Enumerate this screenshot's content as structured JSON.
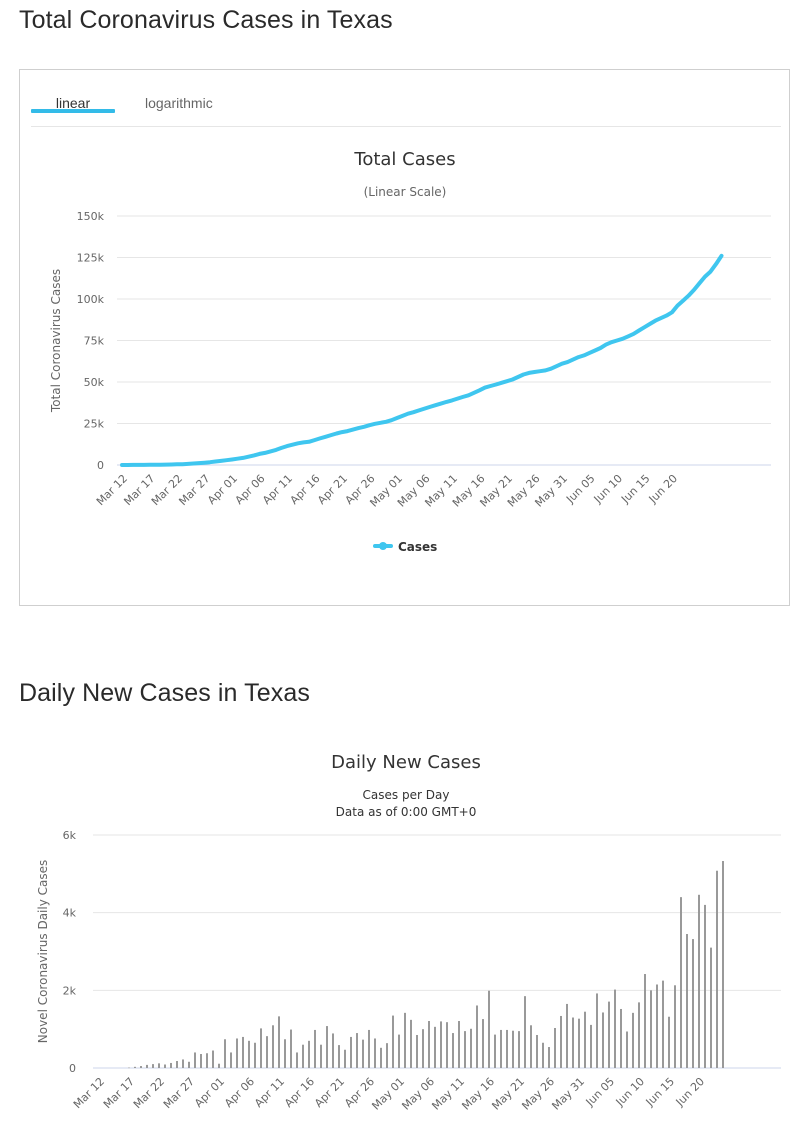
{
  "page": {
    "section1_title": "Total Coronavirus Cases in Texas",
    "section2_title": "Daily New Cases in Texas"
  },
  "tabs": [
    {
      "label": "linear",
      "active": true
    },
    {
      "label": "logarithmic",
      "active": false
    }
  ],
  "colors": {
    "accent": "#33bbe8",
    "line": "#3fc6ef",
    "bar": "#999999",
    "grid": "#e6e6e6"
  },
  "chart_data": [
    {
      "type": "line",
      "title": "Total Cases",
      "subtitle": "(Linear Scale)",
      "ylabel": "Total Coronavirus Cases",
      "ylim": [
        0,
        150000
      ],
      "yticks": [
        0,
        25000,
        50000,
        75000,
        100000,
        125000,
        150000
      ],
      "ytick_labels": [
        "0",
        "25k",
        "50k",
        "75k",
        "100k",
        "125k",
        "150k"
      ],
      "xtick_labels": [
        "Mar 12",
        "Mar 17",
        "Mar 22",
        "Mar 27",
        "Apr 01",
        "Apr 06",
        "Apr 11",
        "Apr 16",
        "Apr 21",
        "Apr 26",
        "May 01",
        "May 06",
        "May 11",
        "May 16",
        "May 21",
        "May 26",
        "May 31",
        "Jun 05",
        "Jun 10",
        "Jun 15",
        "Jun 20"
      ],
      "x_start": "Mar 12",
      "legend": "bottom-center",
      "grid": true,
      "series": [
        {
          "name": "Cases",
          "values": [
            20,
            30,
            40,
            60,
            80,
            120,
            160,
            200,
            250,
            300,
            400,
            500,
            650,
            900,
            1150,
            1400,
            1700,
            2100,
            2500,
            2900,
            3300,
            3800,
            4300,
            5000,
            5800,
            6700,
            7300,
            8200,
            9100,
            10300,
            11400,
            12200,
            13100,
            13600,
            14000,
            15000,
            16000,
            17000,
            18000,
            19000,
            19800,
            20400,
            21300,
            22200,
            23000,
            24000,
            24800,
            25400,
            26000,
            27000,
            28300,
            29600,
            30900,
            31800,
            32900,
            34000,
            35000,
            36000,
            37000,
            38000,
            38900,
            40000,
            41000,
            42000,
            43500,
            45000,
            46600,
            47600,
            48500,
            49500,
            50500,
            51500,
            53000,
            54500,
            55500,
            56000,
            56500,
            57000,
            58000,
            59500,
            61000,
            62000,
            63500,
            65000,
            66000,
            67500,
            69000,
            70500,
            72500,
            74000,
            75000,
            76000,
            77500,
            79000,
            81000,
            83000,
            85000,
            87000,
            88500,
            90000,
            92000,
            96000,
            99000,
            102000,
            105500,
            109500,
            113500,
            116500,
            121000,
            126000
          ]
        }
      ]
    },
    {
      "type": "bar",
      "title": "Daily New Cases",
      "subtitle": "Cases per Day",
      "subtitle2": "Data as of 0:00 GMT+0",
      "ylabel": "Novel Coronavirus Daily Cases",
      "ylim": [
        0,
        6000
      ],
      "yticks": [
        0,
        2000,
        4000,
        6000
      ],
      "ytick_labels": [
        "0",
        "2k",
        "4k",
        "6k"
      ],
      "xtick_labels": [
        "Mar 12",
        "Mar 17",
        "Mar 22",
        "Mar 27",
        "Apr 01",
        "Apr 06",
        "Apr 11",
        "Apr 16",
        "Apr 21",
        "Apr 26",
        "May 01",
        "May 06",
        "May 11",
        "May 16",
        "May 21",
        "May 26",
        "May 31",
        "Jun 05",
        "Jun 10",
        "Jun 15",
        "Jun 20"
      ],
      "x_start": "Mar 12",
      "grid": true,
      "values": [
        0,
        0,
        0,
        0,
        0,
        10,
        30,
        50,
        80,
        100,
        120,
        90,
        130,
        180,
        220,
        160,
        400,
        360,
        380,
        450,
        110,
        740,
        400,
        760,
        800,
        700,
        650,
        1020,
        820,
        1100,
        1330,
        740,
        990,
        400,
        600,
        700,
        980,
        600,
        1080,
        890,
        590,
        470,
        800,
        900,
        730,
        980,
        760,
        520,
        640,
        1350,
        860,
        1420,
        1240,
        850,
        1000,
        1210,
        1060,
        1200,
        1180,
        900,
        1210,
        950,
        1010,
        1610,
        1260,
        1990,
        860,
        980,
        980,
        960,
        950,
        1850,
        1100,
        850,
        650,
        540,
        1030,
        1340,
        1650,
        1300,
        1270,
        1450,
        1110,
        1920,
        1430,
        1710,
        2020,
        1520,
        940,
        1420,
        1690,
        2420,
        2000,
        2150,
        2250,
        1320,
        2130,
        4400,
        3450,
        3320,
        4460,
        4200,
        3100,
        5080,
        5330
      ]
    }
  ]
}
